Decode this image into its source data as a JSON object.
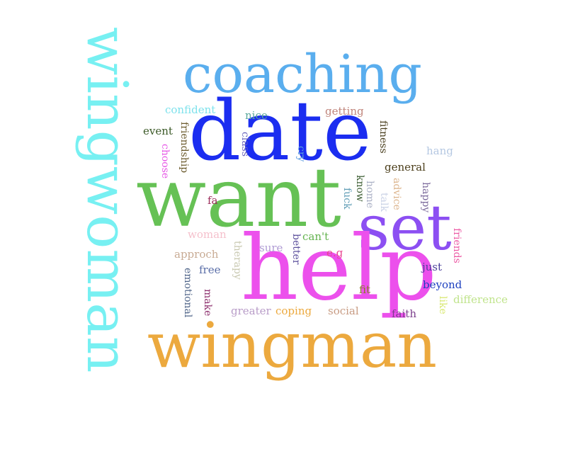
{
  "words": [
    {
      "text": "wingwoman",
      "color": "#77f0f2"
    },
    {
      "text": "coaching",
      "color": "#5aaeee"
    },
    {
      "text": "date",
      "color": "#1b2df0"
    },
    {
      "text": "want",
      "color": "#66c155"
    },
    {
      "text": "set",
      "color": "#8c4ff2"
    },
    {
      "text": "help",
      "color": "#ec50ec"
    },
    {
      "text": "wingman",
      "color": "#eca93e"
    },
    {
      "text": "confident",
      "color": "#7ee2ec"
    },
    {
      "text": "nice",
      "color": "#5aa89c"
    },
    {
      "text": "getting",
      "color": "#c0857c"
    },
    {
      "text": "event",
      "color": "#3c5a28"
    },
    {
      "text": "friendship",
      "color": "#6b5a2c"
    },
    {
      "text": "class",
      "color": "#6a65bc"
    },
    {
      "text": "cry",
      "color": "#5a9bdf"
    },
    {
      "text": "fitness",
      "color": "#4a3f1e"
    },
    {
      "text": "hang",
      "color": "#b5c8e2"
    },
    {
      "text": "choose",
      "color": "#e655e6"
    },
    {
      "text": "general",
      "color": "#4c3f1c"
    },
    {
      "text": "know",
      "color": "#3d5e33"
    },
    {
      "text": "home",
      "color": "#aab0c5"
    },
    {
      "text": "advice",
      "color": "#dcb48c"
    },
    {
      "text": "happy",
      "color": "#7c6a9c"
    },
    {
      "text": "fuck",
      "color": "#5e9cb5"
    },
    {
      "text": "talk",
      "color": "#c9d2e6"
    },
    {
      "text": "fa",
      "color": "#9c2e5c"
    },
    {
      "text": "woman",
      "color": "#f5c0cc"
    },
    {
      "text": "can't",
      "color": "#63b24e"
    },
    {
      "text": "friends",
      "color": "#ec5aa5"
    },
    {
      "text": "approch",
      "color": "#c8ab94"
    },
    {
      "text": "therapy",
      "color": "#c8c8b0"
    },
    {
      "text": "sure",
      "color": "#b09cd4"
    },
    {
      "text": "better",
      "color": "#5b4f9c"
    },
    {
      "text": "e.g",
      "color": "#e84690"
    },
    {
      "text": "free",
      "color": "#5a6ea8"
    },
    {
      "text": "just",
      "color": "#4b3f9c"
    },
    {
      "text": "emotional",
      "color": "#4f6488"
    },
    {
      "text": "beyond",
      "color": "#1c3fbf"
    },
    {
      "text": "fit",
      "color": "#8a7a2c"
    },
    {
      "text": "make",
      "color": "#8c2e6c"
    },
    {
      "text": "difference",
      "color": "#c0e48c"
    },
    {
      "text": "like",
      "color": "#d8e870"
    },
    {
      "text": "greater",
      "color": "#b89cc8"
    },
    {
      "text": "coping",
      "color": "#eca93e"
    },
    {
      "text": "social",
      "color": "#c89c84"
    },
    {
      "text": "faith",
      "color": "#7c3f8c"
    }
  ]
}
